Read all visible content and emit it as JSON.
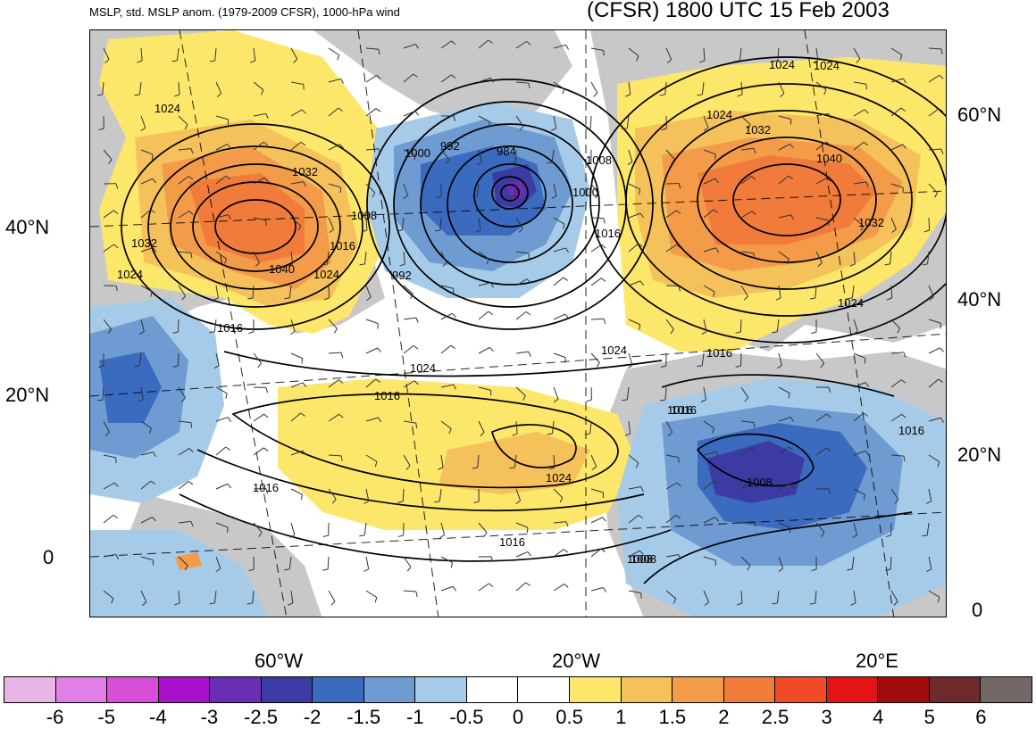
{
  "title_left": "MSLP, std. MSLP anom. (1979-2009 CFSR), 1000-hPa wind",
  "title_right": "(CFSR) 1800 UTC 15 Feb 2003",
  "axes": {
    "left_lat_labels": [
      "40°N",
      "20°N",
      "0"
    ],
    "right_lat_labels": [
      "60°N",
      "40°N",
      "20°N",
      "0"
    ],
    "bottom_lon_labels": [
      "60°W",
      "20°W",
      "20°E"
    ]
  },
  "contour_labels": [
    "1024",
    "1032",
    "1040",
    "1032",
    "1024",
    "1008",
    "1016",
    "1024",
    "1016",
    "1000",
    "992",
    "984",
    "1000",
    "1008",
    "992",
    "1016",
    "1024",
    "1016",
    "1016",
    "1024",
    "1024",
    "1016",
    "1008",
    "1008",
    "1016",
    "1024",
    "1032",
    "1040",
    "1032",
    "1024",
    "1024",
    "1024",
    "1016",
    "1016",
    "1008",
    "1016"
  ],
  "colorbar": {
    "colors": [
      "#e8b6e6",
      "#e07fe6",
      "#d94ed9",
      "#a810cc",
      "#6a2db5",
      "#3c3ba3",
      "#3b6bbf",
      "#6d9bd2",
      "#a6cbe8",
      "#ffffff",
      "#ffffff",
      "#fde76b",
      "#f5c15a",
      "#f39b49",
      "#f07b3a",
      "#f04a28",
      "#e41414",
      "#a30c0c",
      "#6e2a2a",
      "#736766"
    ],
    "labels": [
      "-6",
      "-5",
      "-4",
      "-3",
      "-2.5",
      "-2",
      "-1.5",
      "-1",
      "-0.5",
      "0",
      "0.5",
      "1",
      "1.5",
      "2",
      "2.5",
      "3",
      "4",
      "5",
      "6"
    ]
  }
}
